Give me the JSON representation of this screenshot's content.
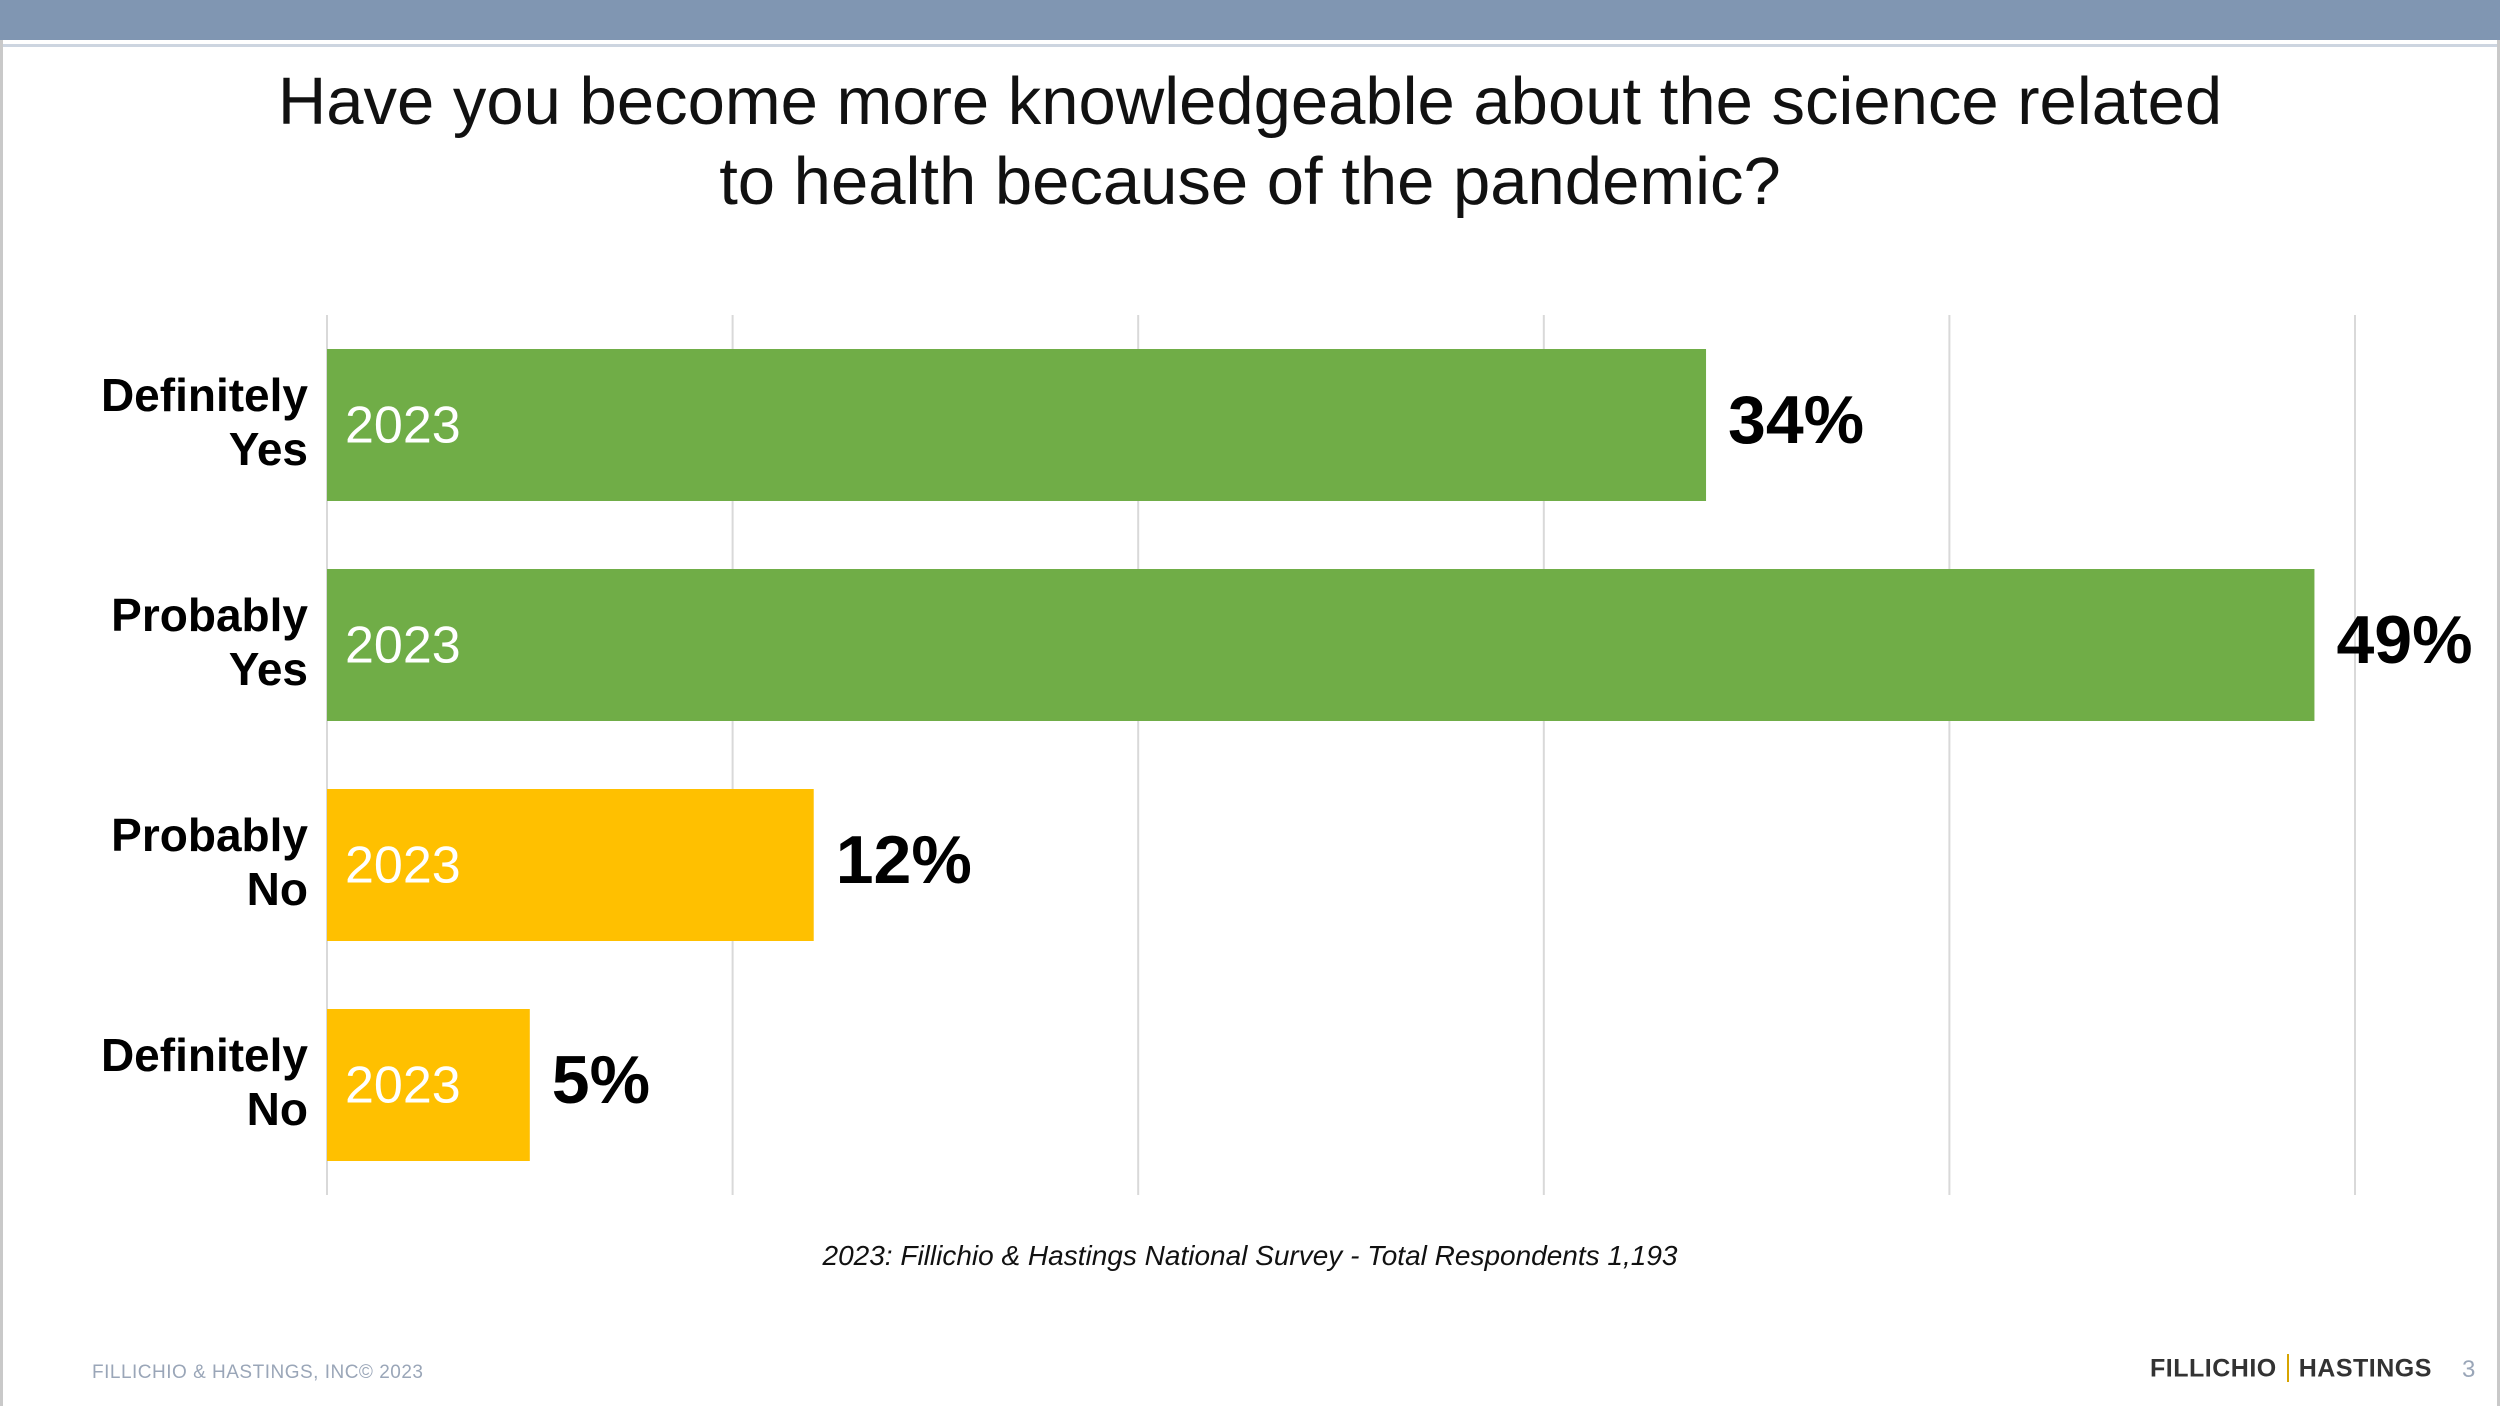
{
  "title": {
    "line1": "Have you become more knowledgeable about the science related",
    "line2": "to health because of the pandemic?"
  },
  "chart_data": {
    "type": "bar",
    "orientation": "horizontal",
    "categories": [
      [
        "Definitely",
        "Yes"
      ],
      [
        "Probably",
        "Yes"
      ],
      [
        "Probably",
        "No"
      ],
      [
        "Definitely",
        "No"
      ]
    ],
    "values": [
      34,
      49,
      12,
      5
    ],
    "value_labels": [
      "34%",
      "49%",
      "12%",
      "5%"
    ],
    "bar_labels": [
      "2023",
      "2023",
      "2023",
      "2023"
    ],
    "colors": [
      "#70ad47",
      "#70ad47",
      "#ffc000",
      "#ffc000"
    ],
    "xlim": [
      0,
      50
    ],
    "grid": true,
    "gridline_values": [
      0,
      10,
      20,
      30,
      40,
      50
    ]
  },
  "source": "2023: Fillichio & Hastings National Survey   - Total Respondents 1,193",
  "footer": {
    "copyright": "FILLICHIO & HASTINGS, INC© 2023",
    "logo_left": "FILLICHIO",
    "logo_right": "HASTINGS",
    "page_number": "3"
  }
}
